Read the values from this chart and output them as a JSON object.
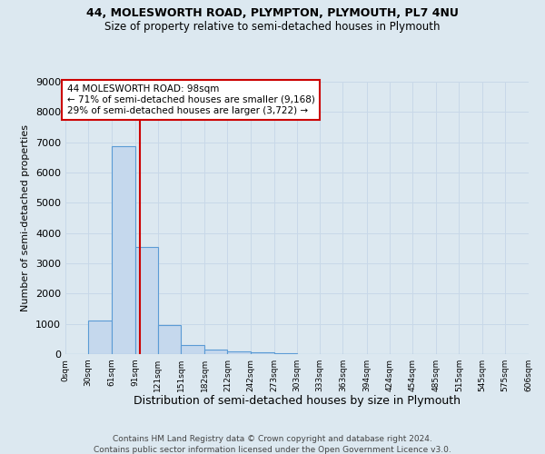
{
  "title1": "44, MOLESWORTH ROAD, PLYMPTON, PLYMOUTH, PL7 4NU",
  "title2": "Size of property relative to semi-detached houses in Plymouth",
  "xlabel": "Distribution of semi-detached houses by size in Plymouth",
  "ylabel": "Number of semi-detached properties",
  "footer1": "Contains HM Land Registry data © Crown copyright and database right 2024.",
  "footer2": "Contains public sector information licensed under the Open Government Licence v3.0.",
  "annotation_line1": "44 MOLESWORTH ROAD: 98sqm",
  "annotation_line2": "← 71% of semi-detached houses are smaller (9,168)",
  "annotation_line3": "29% of semi-detached houses are larger (3,722) →",
  "bin_starts": [
    0,
    30,
    61,
    91,
    121,
    151,
    182,
    212,
    242,
    273,
    303,
    333,
    363,
    394,
    424,
    454,
    485,
    515,
    545,
    575
  ],
  "bin_widths": [
    30,
    31,
    30,
    30,
    30,
    31,
    30,
    30,
    31,
    30,
    30,
    30,
    31,
    30,
    30,
    31,
    30,
    30,
    30,
    31
  ],
  "bar_heights": [
    0,
    1120,
    6880,
    3550,
    950,
    310,
    150,
    90,
    50,
    30,
    0,
    0,
    0,
    0,
    0,
    0,
    0,
    0,
    0,
    0
  ],
  "tick_labels": [
    "0sqm",
    "30sqm",
    "61sqm",
    "91sqm",
    "121sqm",
    "151sqm",
    "182sqm",
    "212sqm",
    "242sqm",
    "273sqm",
    "303sqm",
    "333sqm",
    "363sqm",
    "394sqm",
    "424sqm",
    "454sqm",
    "485sqm",
    "515sqm",
    "545sqm",
    "575sqm",
    "606sqm"
  ],
  "tick_positions": [
    0,
    30,
    61,
    91,
    121,
    151,
    182,
    212,
    242,
    273,
    303,
    333,
    363,
    394,
    424,
    454,
    485,
    515,
    545,
    575,
    606
  ],
  "property_size": 98,
  "bar_face_color": "#c5d8ed",
  "bar_edge_color": "#5b9bd5",
  "vline_color": "#cc0000",
  "annotation_box_color": "#cc0000",
  "grid_color": "#c8d8e8",
  "background_color": "#dce8f0",
  "ylim": [
    0,
    9000
  ],
  "xlim": [
    0,
    606
  ],
  "yticks": [
    0,
    1000,
    2000,
    3000,
    4000,
    5000,
    6000,
    7000,
    8000,
    9000
  ]
}
